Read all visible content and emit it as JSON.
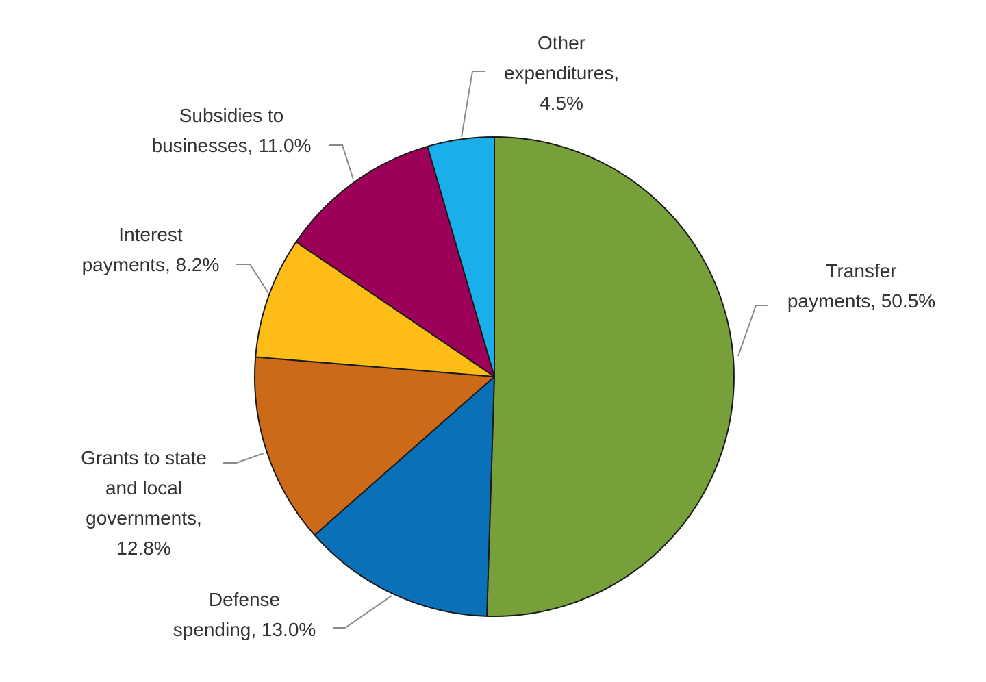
{
  "chart_data": {
    "type": "pie",
    "start_angle_deg": 0,
    "direction": "clockwise",
    "slices": [
      {
        "name": "Transfer payments",
        "value": 50.5,
        "color": "#77A03A",
        "label_lines": [
          "Transfer",
          "payments, 50.5%"
        ]
      },
      {
        "name": "Defense spending",
        "value": 13.0,
        "color": "#0A71B9",
        "label_lines": [
          "Defense",
          "spending, 13.0%"
        ]
      },
      {
        "name": "Grants to state and local governments",
        "value": 12.8,
        "color": "#CC6A1A",
        "label_lines": [
          "Grants to state",
          "and local",
          "governments,",
          "12.8%"
        ]
      },
      {
        "name": "Interest payments",
        "value": 8.2,
        "color": "#FDBD16",
        "label_lines": [
          "Interest",
          "payments, 8.2%"
        ]
      },
      {
        "name": "Subsidies to businesses",
        "value": 11.0,
        "color": "#9C0059",
        "label_lines": [
          "Subsidies to",
          "businesses, 11.0%"
        ]
      },
      {
        "name": "Other expenditures",
        "value": 4.5,
        "color": "#1AAFEA",
        "label_lines": [
          "Other",
          "expenditures,",
          "4.5%"
        ]
      }
    ]
  }
}
